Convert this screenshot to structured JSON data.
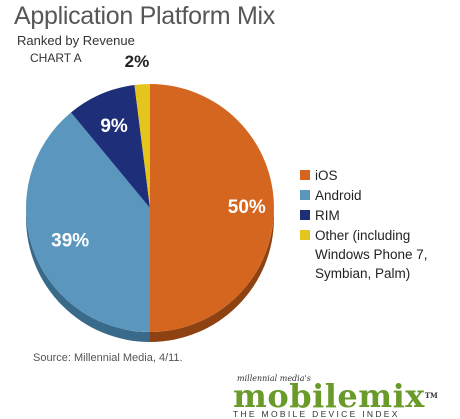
{
  "chart_data": {
    "type": "pie",
    "title": "Application Platform Mix",
    "subtitle": "Ranked by Revenue",
    "chart_label": "CHART A",
    "slices": [
      {
        "label": "iOS",
        "value": 50,
        "display": "50%",
        "color": "#d4661f",
        "dark": "#8e4212",
        "label_color": "#ffffff"
      },
      {
        "label": "Android",
        "value": 39,
        "display": "39%",
        "color": "#5b96be",
        "dark": "#396a8a",
        "label_color": "#ffffff"
      },
      {
        "label": "RIM",
        "value": 9,
        "display": "9%",
        "color": "#1f2e78",
        "dark": "#121b4c",
        "label_color": "#ffffff"
      },
      {
        "label": "Other (including Windows Phone 7, Symbian, Palm)",
        "value": 2,
        "display": "2%",
        "color": "#e3c51d",
        "dark": "#9c8613",
        "label_color": "#222222"
      }
    ],
    "legend_position": "right",
    "source": "Source: Millennial Media, 4/11."
  },
  "logo": {
    "top_text": "millennial media's",
    "main_text": "mobilemix",
    "tm": "TM",
    "tagline": "THE MOBILE DEVICE INDEX"
  }
}
